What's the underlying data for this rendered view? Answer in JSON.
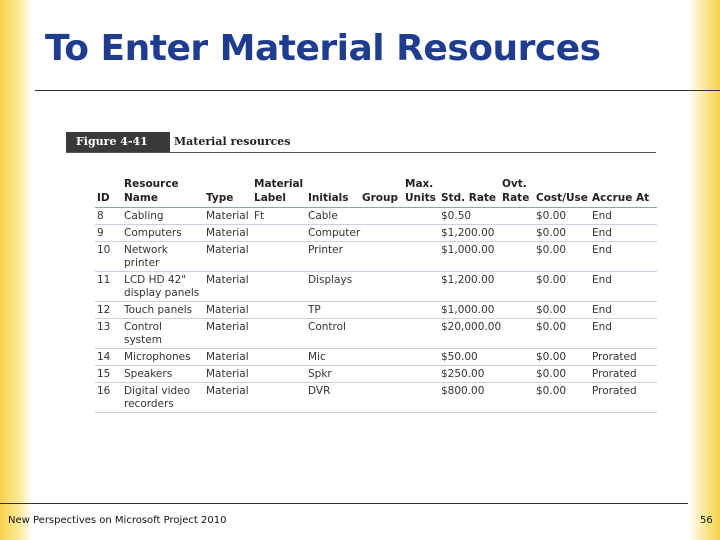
{
  "title": "To Enter Material Resources",
  "figure": {
    "label": "Figure 4-41",
    "caption": "Material resources"
  },
  "table": {
    "header": {
      "id": "ID",
      "name": "Resource Name",
      "type": "Type",
      "label": "Material Label",
      "initials": "Initials",
      "group": "Group",
      "max_units": "Max. Units",
      "std_rate": "Std. Rate",
      "ovt_rate": "Ovt. Rate",
      "cost_use": "Cost/Use",
      "accrue": "Accrue At"
    },
    "rows": [
      {
        "id": "8",
        "name": "Cabling",
        "type": "Material",
        "label": "Ft",
        "initials": "Cable",
        "std_rate": "$0.50",
        "cost_use": "$0.00",
        "accrue": "End"
      },
      {
        "id": "9",
        "name": "Computers",
        "type": "Material",
        "initials": "Computer",
        "std_rate": "$1,200.00",
        "cost_use": "$0.00",
        "accrue": "End"
      },
      {
        "id": "10",
        "name": "Network printer",
        "type": "Material",
        "initials": "Printer",
        "std_rate": "$1,000.00",
        "cost_use": "$0.00",
        "accrue": "End"
      },
      {
        "id": "11",
        "name": "LCD HD 42\" display panels",
        "type": "Material",
        "initials": "Displays",
        "std_rate": "$1,200.00",
        "cost_use": "$0.00",
        "accrue": "End"
      },
      {
        "id": "12",
        "name": "Touch panels",
        "type": "Material",
        "initials": "TP",
        "std_rate": "$1,000.00",
        "cost_use": "$0.00",
        "accrue": "End"
      },
      {
        "id": "13",
        "name": "Control system",
        "type": "Material",
        "initials": "Control",
        "std_rate": "$20,000.00",
        "cost_use": "$0.00",
        "accrue": "End"
      },
      {
        "id": "14",
        "name": "Microphones",
        "type": "Material",
        "initials": "Mic",
        "std_rate": "$50.00",
        "cost_use": "$0.00",
        "accrue": "Prorated"
      },
      {
        "id": "15",
        "name": "Speakers",
        "type": "Material",
        "initials": "Spkr",
        "std_rate": "$250.00",
        "cost_use": "$0.00",
        "accrue": "Prorated"
      },
      {
        "id": "16",
        "name": "Digital video recorders",
        "type": "Material",
        "initials": "DVR",
        "std_rate": "$800.00",
        "cost_use": "$0.00",
        "accrue": "Prorated"
      }
    ]
  },
  "footer": {
    "text": "New Perspectives on Microsoft Project 2010",
    "page": "56"
  }
}
